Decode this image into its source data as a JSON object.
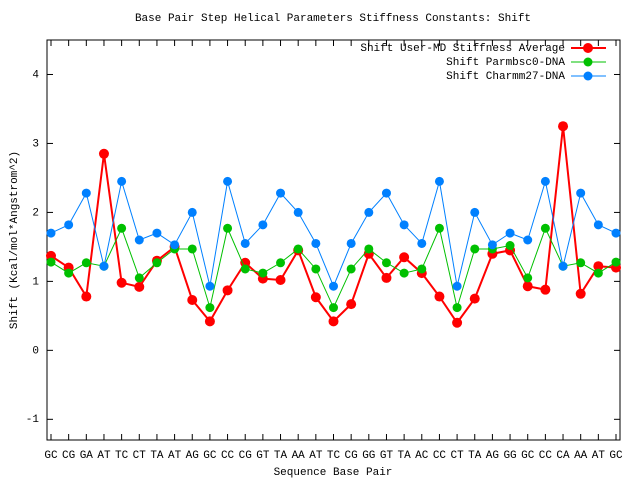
{
  "chart_data": {
    "type": "line",
    "title": "Base Pair Step Helical Parameters Stiffness Constants: Shift",
    "x_label": "Sequence Base Pair",
    "y_label": "Shift (Kcal/mol*Angstrom^2)",
    "categories": [
      "GC",
      "CG",
      "GA",
      "AT",
      "TC",
      "CT",
      "TA",
      "AT",
      "AG",
      "GC",
      "CC",
      "CG",
      "GT",
      "TA",
      "AA",
      "AT",
      "TC",
      "CG",
      "GG",
      "GT",
      "TA",
      "AC",
      "CC",
      "CT",
      "TA",
      "AG",
      "GG",
      "GC",
      "CC",
      "CA",
      "AA",
      "AT",
      "GC"
    ],
    "series": [
      {
        "name": "Shift User-MD Stiffness Average",
        "color": "#ff0000",
        "values": [
          1.37,
          1.2,
          0.78,
          2.85,
          0.98,
          0.92,
          1.3,
          1.5,
          0.73,
          0.42,
          0.87,
          1.27,
          1.04,
          1.02,
          1.45,
          0.77,
          0.42,
          0.67,
          1.4,
          1.05,
          1.35,
          1.12,
          0.78,
          0.4,
          0.75,
          1.4,
          1.45,
          0.93,
          0.88,
          3.25,
          0.82,
          1.22,
          1.2
        ]
      },
      {
        "name": "Shift Parmbsc0-DNA",
        "color": "#00c000",
        "values": [
          1.28,
          1.12,
          1.27,
          1.22,
          1.77,
          1.05,
          1.27,
          1.47,
          1.47,
          0.62,
          1.77,
          1.18,
          1.12,
          1.27,
          1.47,
          1.18,
          0.62,
          1.18,
          1.47,
          1.27,
          1.12,
          1.18,
          1.77,
          0.62,
          1.47,
          1.47,
          1.52,
          1.05,
          1.77,
          1.22,
          1.27,
          1.12,
          1.28
        ]
      },
      {
        "name": "Shift Charmm27-DNA",
        "color": "#0080ff",
        "values": [
          1.7,
          1.82,
          2.28,
          1.22,
          2.45,
          1.6,
          1.7,
          1.53,
          2.0,
          0.93,
          2.45,
          1.55,
          1.82,
          2.28,
          2.0,
          1.55,
          0.93,
          1.55,
          2.0,
          2.28,
          1.82,
          1.55,
          2.45,
          0.93,
          2.0,
          1.53,
          1.7,
          1.6,
          2.45,
          1.22,
          2.28,
          1.82,
          1.7
        ]
      }
    ],
    "ylim": [
      -1.3,
      4.5
    ],
    "yticks": [
      -1,
      0,
      1,
      2,
      3,
      4
    ],
    "legend": "top-right"
  }
}
